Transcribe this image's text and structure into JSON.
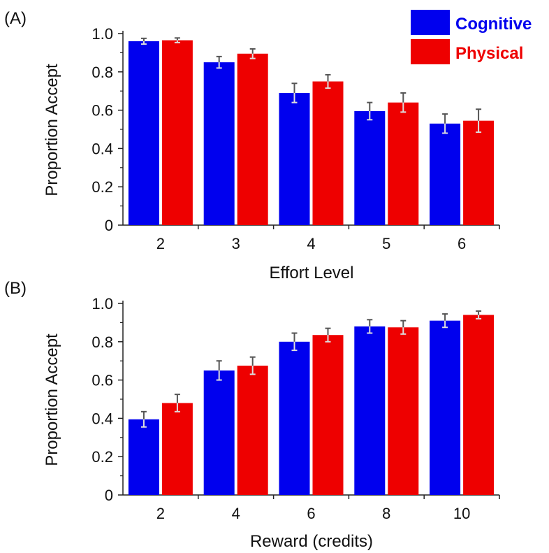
{
  "legend": [
    {
      "name": "Cognitive",
      "color": "#0000ee"
    },
    {
      "name": "Physical",
      "color": "#ee0000"
    }
  ],
  "chart_data": [
    {
      "type": "bar",
      "panel_label": "(A)",
      "xlabel": "Effort Level",
      "ylabel": "Proportion Accept",
      "ylim": [
        0,
        1.0
      ],
      "yticks": [
        "0",
        "0.2",
        "0.4",
        "0.6",
        "0.8",
        "1.0"
      ],
      "categories": [
        "2",
        "3",
        "4",
        "5",
        "6"
      ],
      "series": [
        {
          "name": "Cognitive",
          "color": "#0000ee",
          "values": [
            0.96,
            0.85,
            0.69,
            0.595,
            0.53
          ],
          "errors": [
            0.015,
            0.03,
            0.05,
            0.045,
            0.05
          ]
        },
        {
          "name": "Physical",
          "color": "#ee0000",
          "values": [
            0.965,
            0.895,
            0.75,
            0.64,
            0.545
          ],
          "errors": [
            0.012,
            0.025,
            0.035,
            0.05,
            0.06
          ]
        }
      ],
      "grid": false
    },
    {
      "type": "bar",
      "panel_label": "(B)",
      "xlabel": "Reward (credits)",
      "ylabel": "Proportion Accept",
      "ylim": [
        0,
        1.0
      ],
      "yticks": [
        "0",
        "0.2",
        "0.4",
        "0.6",
        "0.8",
        "1.0"
      ],
      "categories": [
        "2",
        "4",
        "6",
        "8",
        "10"
      ],
      "series": [
        {
          "name": "Cognitive",
          "color": "#0000ee",
          "values": [
            0.395,
            0.65,
            0.8,
            0.88,
            0.91
          ],
          "errors": [
            0.04,
            0.05,
            0.045,
            0.035,
            0.035
          ]
        },
        {
          "name": "Physical",
          "color": "#ee0000",
          "values": [
            0.48,
            0.675,
            0.835,
            0.875,
            0.94
          ],
          "errors": [
            0.045,
            0.045,
            0.035,
            0.035,
            0.02
          ]
        }
      ],
      "grid": false
    }
  ]
}
